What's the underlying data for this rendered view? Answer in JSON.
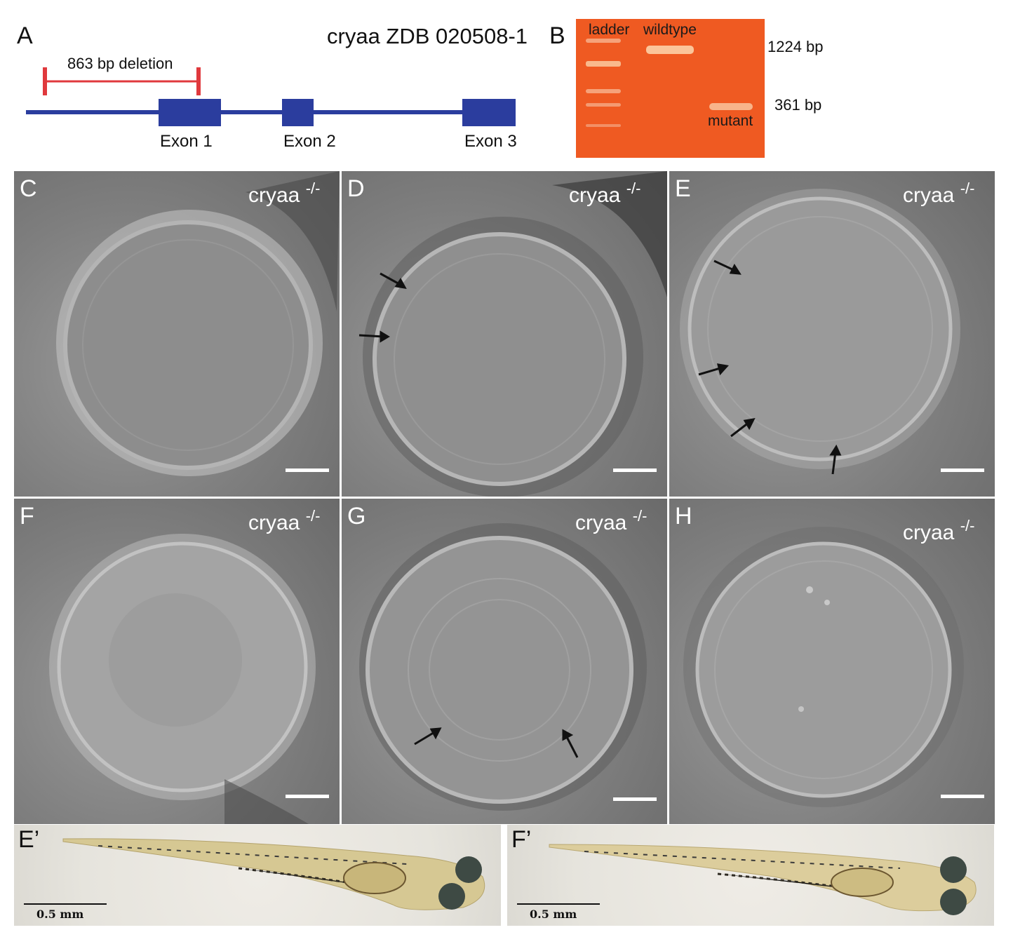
{
  "panel_a": {
    "letter": "A",
    "title": "cryaa ZDB 020508-1",
    "deletion_label": "863 bp deletion",
    "exons": [
      "Exon 1",
      "Exon 2",
      "Exon 3"
    ],
    "colors": {
      "gene": "#2b3d9e",
      "deletion": "#e0393d"
    }
  },
  "panel_b": {
    "letter": "B",
    "lane_labels": {
      "ladder": "ladder",
      "wildtype": "wildtype",
      "mutant": "mutant"
    },
    "band_sizes": [
      "1224 bp",
      "361 bp"
    ],
    "gel_color": "#ef5a22"
  },
  "micrographs": [
    {
      "letter": "C",
      "genotype": "cryaa",
      "superscript": "-/-"
    },
    {
      "letter": "D",
      "genotype": "cryaa",
      "superscript": "-/-"
    },
    {
      "letter": "E",
      "genotype": "cryaa",
      "superscript": "-/-"
    },
    {
      "letter": "F",
      "genotype": "cryaa",
      "superscript": "-/-"
    },
    {
      "letter": "G",
      "genotype": "cryaa",
      "superscript": "-/-"
    },
    {
      "letter": "H",
      "genotype": "cryaa",
      "superscript": "-/-"
    }
  ],
  "larvae": [
    {
      "letter": "E’",
      "scale_label": "0.5 mm"
    },
    {
      "letter": "F’",
      "scale_label": "0.5 mm"
    }
  ]
}
